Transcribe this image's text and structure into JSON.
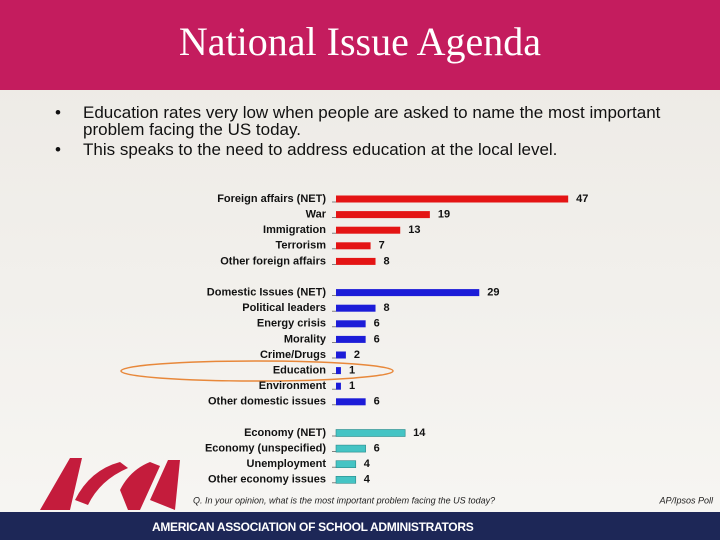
{
  "title": "National Issue Agenda",
  "bullets": [
    "Education rates very low when people are asked to name the most important problem facing the US today.",
    "This speaks to the need to address education at the local level."
  ],
  "chart_data": {
    "type": "bar",
    "orientation": "horizontal",
    "groups": [
      {
        "color": "#e41414",
        "categories": [
          "Foreign affairs (NET)",
          "War",
          "Immigration",
          "Terrorism",
          "Other foreign affairs"
        ],
        "values": [
          47,
          19,
          13,
          7,
          8
        ]
      },
      {
        "color": "#1c1cd8",
        "categories": [
          "Domestic Issues (NET)",
          "Political leaders",
          "Energy crisis",
          "Morality",
          "Crime/Drugs",
          "Education",
          "Environment",
          "Other domestic issues"
        ],
        "values": [
          29,
          8,
          6,
          6,
          2,
          1,
          1,
          6
        ]
      },
      {
        "color": "#44c4c4",
        "categories": [
          "Economy (NET)",
          "Economy (unspecified)",
          "Unemployment",
          "Other economy issues"
        ],
        "values": [
          14,
          6,
          4,
          4
        ]
      }
    ],
    "question": "Q. In your opinion, what is the most important problem facing the US today?",
    "source": "AP/Ipsos Poll"
  },
  "footer": "AMERICAN ASSOCIATION OF SCHOOL ADMINISTRATORS"
}
